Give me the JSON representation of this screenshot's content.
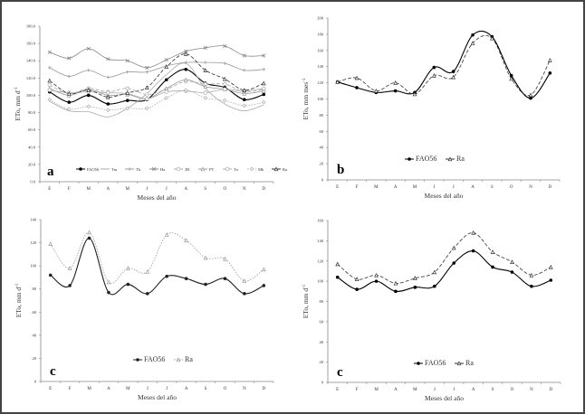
{
  "chart_data": [
    {
      "type": "line",
      "panel_letter": "a",
      "xlabel": "Meses del año",
      "ylabel": "ETo, mm d",
      "ylabel_sup": "-1",
      "categories": [
        "E",
        "F",
        "M",
        "A",
        "M",
        "J",
        "J",
        "A",
        "S",
        "O",
        "N",
        "D"
      ],
      "ylim": [
        0,
        180
      ],
      "ytick_step": 20,
      "ytick_decimals": 1,
      "grid": false,
      "legend_placement": "bottom-center",
      "series": [
        {
          "name": "FAO56",
          "color": "#000000",
          "dash": "solid",
          "marker": "circle-filled",
          "values": [
            104,
            92,
            100,
            90,
            94,
            95,
            118,
            130,
            114,
            109,
            95,
            101
          ]
        },
        {
          "name": "Tm",
          "color": "#aaaaaa",
          "dash": "solid",
          "marker": "none",
          "values": [
            93,
            82,
            81,
            75,
            85,
            102,
            124,
            137,
            108,
            90,
            82,
            89
          ]
        },
        {
          "name": "Th",
          "color": "#999999",
          "dash": "solid",
          "marker": "plus",
          "values": [
            132,
            122,
            129,
            121,
            127,
            127,
            134,
            138,
            138,
            137,
            129,
            130
          ]
        },
        {
          "name": "Ha",
          "color": "#888888",
          "dash": "solid",
          "marker": "x",
          "values": [
            150,
            143,
            154,
            142,
            140,
            132,
            141,
            151,
            155,
            157,
            146,
            146
          ]
        },
        {
          "name": "JH",
          "color": "#aaaaaa",
          "dash": "dashed",
          "marker": "circle-open",
          "values": [
            112,
            102,
            108,
            104,
            108,
            101,
            107,
            116,
            113,
            113,
            104,
            107
          ]
        },
        {
          "name": "PT",
          "color": "#999999",
          "dash": "solid",
          "marker": "triangle-open",
          "values": [
            108,
            100,
            107,
            100,
            101,
            96,
            108,
            118,
            110,
            107,
            102,
            105
          ]
        },
        {
          "name": "Tu",
          "color": "#aaaaaa",
          "dash": "solid",
          "marker": "circle-open",
          "values": [
            106,
            103,
            104,
            103,
            102,
            96,
            104,
            105,
            103,
            107,
            105,
            108
          ]
        },
        {
          "name": "Mk",
          "color": "#aaaaaa",
          "dash": "dotted",
          "marker": "diamond-open",
          "values": [
            95,
            84,
            87,
            83,
            85,
            85,
            97,
            106,
            97,
            94,
            88,
            92
          ]
        },
        {
          "name": "Ra",
          "color": "#333333",
          "dash": "dashed",
          "marker": "triangle-open",
          "values": [
            117,
            102,
            106,
            98,
            103,
            109,
            133,
            148,
            129,
            119,
            106,
            114
          ]
        }
      ]
    },
    {
      "type": "line",
      "panel_letter": "b",
      "xlabel": "Meses del año",
      "ylabel": "ETo, mm mes",
      "ylabel_sup": "-1",
      "categories": [
        "E",
        "F",
        "M",
        "A",
        "M",
        "J",
        "J",
        "A",
        "S",
        "O",
        "N",
        "D"
      ],
      "ylim": [
        0,
        200
      ],
      "ytick_step": 20,
      "ytick_decimals": 0,
      "grid": false,
      "legend_placement": "bottom-center",
      "series": [
        {
          "name": "FAO56",
          "color": "#000000",
          "dash": "solid",
          "marker": "circle-filled",
          "values": [
            121,
            114,
            108,
            110,
            108,
            139,
            134,
            179,
            177,
            129,
            101,
            132
          ]
        },
        {
          "name": "Ra",
          "color": "#333333",
          "dash": "dashed",
          "marker": "triangle-open",
          "values": [
            121,
            126,
            110,
            120,
            106,
            129,
            127,
            169,
            175,
            125,
            105,
            148
          ]
        }
      ]
    },
    {
      "type": "line",
      "panel_letter": "c",
      "xlabel": "Meses del año",
      "ylabel": "ETo, mm d",
      "ylabel_sup": "-1",
      "categories": [
        "E",
        "F",
        "M",
        "A",
        "M",
        "J",
        "J",
        "A",
        "S",
        "O",
        "N",
        "D"
      ],
      "ylim": [
        0,
        140
      ],
      "ytick_step": 20,
      "ytick_decimals": 0,
      "grid": false,
      "legend_placement": "bottom-center",
      "series": [
        {
          "name": "FAO56",
          "color": "#222222",
          "dash": "solid",
          "marker": "circle-filled",
          "values": [
            92,
            83,
            124,
            77,
            84,
            76,
            91,
            89,
            84,
            89,
            76,
            83
          ]
        },
        {
          "name": "Ra",
          "color": "#999999",
          "dash": "dotted",
          "marker": "triangle-open",
          "values": [
            119,
            98,
            129,
            86,
            98,
            95,
            127,
            122,
            107,
            106,
            87,
            97
          ]
        }
      ]
    },
    {
      "type": "line",
      "panel_letter": "c",
      "xlabel": "Meses del año",
      "ylabel": "ETo, mm d",
      "ylabel_sup": "-1",
      "categories": [
        "E",
        "F",
        "M",
        "A",
        "M",
        "J",
        "J",
        "A",
        "S",
        "O",
        "N",
        "D"
      ],
      "ylim": [
        0,
        160
      ],
      "ytick_step": 20,
      "ytick_decimals": 0,
      "grid": false,
      "legend_placement": "bottom-center",
      "series": [
        {
          "name": "FAO56",
          "color": "#000000",
          "dash": "solid",
          "marker": "circle-filled",
          "values": [
            104,
            92,
            100,
            90,
            94,
            95,
            118,
            130,
            114,
            109,
            95,
            101
          ]
        },
        {
          "name": "Ra",
          "color": "#333333",
          "dash": "dashed",
          "marker": "triangle-open",
          "values": [
            117,
            102,
            106,
            98,
            103,
            109,
            133,
            148,
            129,
            119,
            106,
            114
          ]
        }
      ]
    }
  ]
}
